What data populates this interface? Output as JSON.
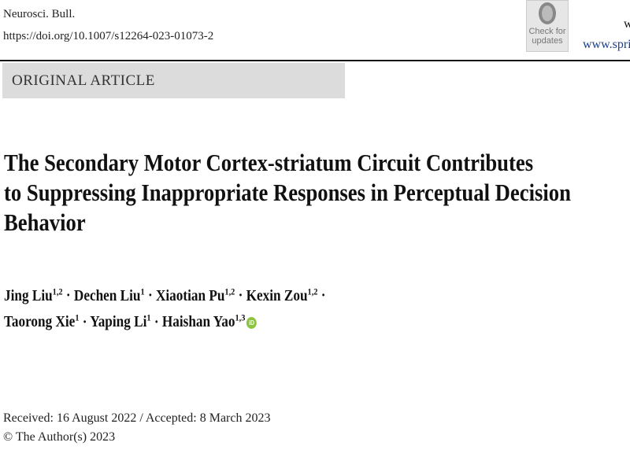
{
  "header": {
    "journal": "Neurosci. Bull.",
    "doi": "https://doi.org/10.1007/s12264-023-01073-2",
    "badge_line1": "Check for",
    "badge_line2": "updates",
    "site_top": "w",
    "site": "www.spri"
  },
  "article_type": "ORIGINAL ARTICLE",
  "title_lines": [
    "The Secondary Motor Cortex-striatum Circuit Contributes",
    "to Suppressing Inappropriate Responses in Perceptual Decision",
    "Behavior"
  ],
  "authors": [
    {
      "name": "Jing Liu",
      "aff": "1,2"
    },
    {
      "name": "Dechen Liu",
      "aff": "1"
    },
    {
      "name": "Xiaotian Pu",
      "aff": "1,2"
    },
    {
      "name": "Kexin Zou",
      "aff": "1,2"
    },
    {
      "name": "Taorong Xie",
      "aff": "1"
    },
    {
      "name": "Yaping Li",
      "aff": "1"
    },
    {
      "name": "Haishan Yao",
      "aff": "1,3"
    }
  ],
  "sep": " · ",
  "orcid_icon": "orcid-icon",
  "dates": {
    "received": "Received: 16 August 2022 / Accepted: 8 March 2023",
    "copyright": "© The Author(s) 2023"
  },
  "colors": {
    "orcid": "#8bc53f",
    "link": "#1c3c8c",
    "banner": "#dcdcdc"
  }
}
